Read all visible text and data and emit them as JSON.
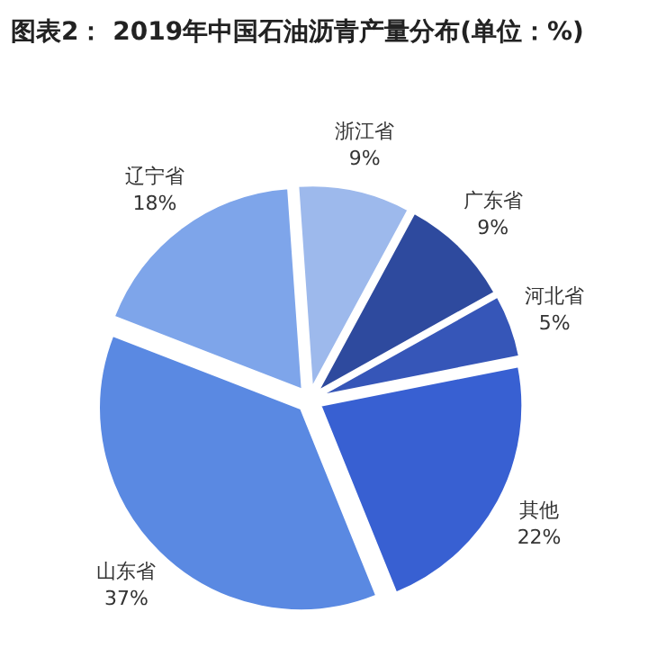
{
  "chart_data": {
    "type": "pie",
    "title": "图表2： 2019年中国石油沥青产量分布(单位：%)",
    "categories": [
      "浙江省",
      "广东省",
      "河北省",
      "其他",
      "山东省",
      "辽宁省"
    ],
    "values": [
      9,
      9,
      5,
      22,
      37,
      18
    ],
    "colors": [
      "#9db9ec",
      "#2e4a9e",
      "#3656b8",
      "#3860d2",
      "#5a89e2",
      "#7ea5ea"
    ],
    "value_labels": [
      "9%",
      "9%",
      "5%",
      "22%",
      "37%",
      "18%"
    ],
    "legend": false
  }
}
